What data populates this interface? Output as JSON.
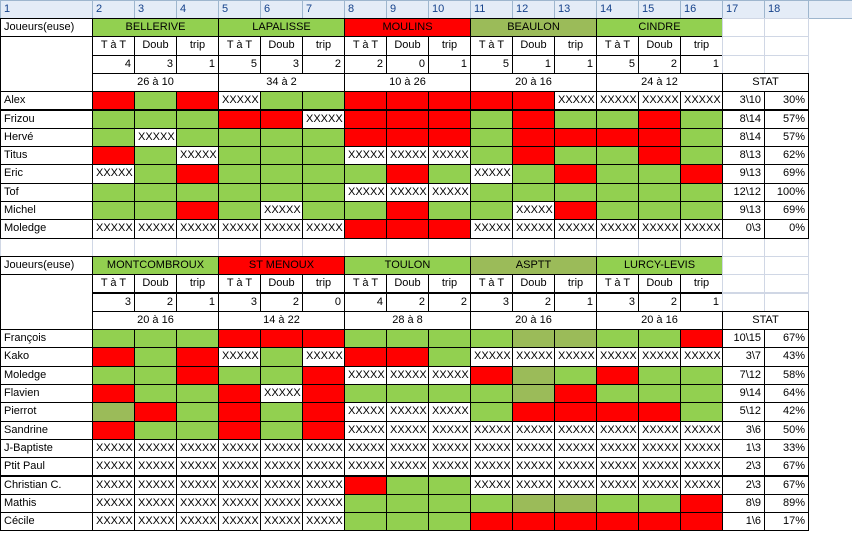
{
  "column_headers": [
    1,
    2,
    3,
    4,
    5,
    6,
    7,
    8,
    9,
    10,
    11,
    12,
    13,
    14,
    15,
    16,
    17,
    18
  ],
  "sections": [
    {
      "label": "Joueurs(euse)",
      "stat_label": "STAT",
      "teams": [
        {
          "name": "BELLERIVE",
          "sub": [
            "T à T",
            "Doub",
            "trip"
          ],
          "counts": [
            4,
            3,
            1
          ],
          "score": "26 à 10"
        },
        {
          "name": "LAPALISSE",
          "sub": [
            "T à T",
            "Doub",
            "trip"
          ],
          "counts": [
            5,
            3,
            2
          ],
          "score": "34 à 2"
        },
        {
          "name": "MOULINS",
          "sub": [
            "T à T",
            "Doub",
            "trip"
          ],
          "counts": [
            2,
            0,
            1
          ],
          "score": "10 à 26"
        },
        {
          "name": "BEAULON",
          "sub": [
            "T à T",
            "Doub",
            "trip"
          ],
          "counts": [
            5,
            1,
            1
          ],
          "score": "20 à 16"
        },
        {
          "name": "CINDRE",
          "sub": [
            "T à T",
            "Doub",
            "trip"
          ],
          "counts": [
            5,
            2,
            1
          ],
          "score": "24 à 12"
        }
      ],
      "players": [
        {
          "name": "Alex",
          "cells": [
            null,
            null,
            null,
            "XXXXX",
            null,
            null,
            null,
            null,
            null,
            null,
            null,
            "XXXXX",
            "XXXXX",
            "XXXXX",
            "XXXXX"
          ],
          "stat": "3\\10",
          "pct": "30%"
        },
        {
          "name": "Frizou",
          "cells": [
            null,
            null,
            null,
            null,
            null,
            "XXXXX",
            null,
            null,
            null,
            null,
            null,
            null,
            null,
            null,
            null
          ],
          "stat": "8\\14",
          "pct": "57%"
        },
        {
          "name": "Hervé",
          "cells": [
            null,
            "XXXXX",
            null,
            null,
            null,
            null,
            null,
            null,
            null,
            null,
            null,
            null,
            null,
            null,
            null
          ],
          "stat": "8\\14",
          "pct": "57%"
        },
        {
          "name": "Titus",
          "cells": [
            null,
            null,
            "XXXXX",
            null,
            null,
            null,
            "XXXXX",
            "XXXXX",
            "XXXXX",
            null,
            null,
            null,
            null,
            null,
            null
          ],
          "stat": "8\\13",
          "pct": "62%"
        },
        {
          "name": "Eric",
          "cells": [
            "XXXXX",
            null,
            null,
            null,
            null,
            null,
            null,
            null,
            null,
            "XXXXX",
            null,
            null,
            null,
            null,
            null
          ],
          "stat": "9\\13",
          "pct": "69%"
        },
        {
          "name": "Tof",
          "cells": [
            null,
            null,
            null,
            null,
            null,
            null,
            "XXXXX",
            "XXXXX",
            "XXXXX",
            null,
            null,
            null,
            null,
            null,
            null
          ],
          "stat": "12\\12",
          "pct": "100%"
        },
        {
          "name": "Michel",
          "cells": [
            null,
            null,
            null,
            null,
            "XXXXX",
            null,
            null,
            null,
            null,
            null,
            "XXXXX",
            null,
            null,
            null,
            null
          ],
          "stat": "9\\13",
          "pct": "69%"
        },
        {
          "name": "Moledge",
          "cells": [
            "XXXXX",
            "XXXXX",
            "XXXXX",
            "XXXXX",
            "XXXXX",
            "XXXXX",
            null,
            null,
            null,
            "XXXXX",
            "XXXXX",
            "XXXXX",
            "XXXXX",
            "XXXXX",
            "XXXXX"
          ],
          "stat": "0\\3",
          "pct": "0%"
        }
      ]
    },
    {
      "label": "Joueurs(euse)",
      "stat_label": "STAT",
      "teams": [
        {
          "name": "MONTCOMBROUX",
          "sub": [
            "T à T",
            "Doub",
            "trip"
          ],
          "counts": [
            3,
            2,
            1
          ],
          "score": "20 à 16"
        },
        {
          "name": "ST MENOUX",
          "sub": [
            "T à T",
            "Doub",
            "trip"
          ],
          "counts": [
            3,
            2,
            0
          ],
          "score": "14 à 22"
        },
        {
          "name": "TOULON",
          "sub": [
            "T à T",
            "Doub",
            "trip"
          ],
          "counts": [
            4,
            2,
            2
          ],
          "score": "28 à 8"
        },
        {
          "name": "ASPTT",
          "sub": [
            "T à T",
            "Doub",
            "trip"
          ],
          "counts": [
            3,
            2,
            1
          ],
          "score": "20 à 16"
        },
        {
          "name": "LURCY-LEVIS",
          "sub": [
            "T à T",
            "Doub",
            "trip"
          ],
          "counts": [
            3,
            2,
            1
          ],
          "score": "20 à 16"
        }
      ],
      "players": [
        {
          "name": "François",
          "cells": [
            null,
            null,
            null,
            null,
            null,
            null,
            null,
            null,
            null,
            null,
            null,
            null,
            null,
            null,
            null
          ],
          "stat": "10\\15",
          "pct": "67%"
        },
        {
          "name": "Kako",
          "cells": [
            null,
            null,
            null,
            "XXXXX",
            null,
            "XXXXX",
            null,
            null,
            null,
            "XXXXX",
            "XXXXX",
            "XXXXX",
            "XXXXX",
            "XXXXX",
            "XXXXX"
          ],
          "stat": "3\\7",
          "pct": "43%"
        },
        {
          "name": "Moledge",
          "cells": [
            null,
            null,
            null,
            null,
            null,
            null,
            "XXXXX",
            "XXXXX",
            "XXXXX",
            null,
            null,
            null,
            null,
            null,
            null
          ],
          "stat": "7\\12",
          "pct": "58%"
        },
        {
          "name": "Flavien",
          "cells": [
            null,
            null,
            null,
            null,
            "XXXXX",
            null,
            null,
            null,
            null,
            null,
            null,
            null,
            null,
            null,
            null
          ],
          "stat": "9\\14",
          "pct": "64%"
        },
        {
          "name": "Pierrot",
          "cells": [
            null,
            null,
            null,
            null,
            null,
            null,
            "XXXXX",
            "XXXXX",
            "XXXXX",
            null,
            null,
            null,
            null,
            null,
            null
          ],
          "stat": "5\\12",
          "pct": "42%"
        },
        {
          "name": "Sandrine",
          "cells": [
            null,
            null,
            null,
            null,
            null,
            null,
            "XXXXX",
            "XXXXX",
            "XXXXX",
            "XXXXX",
            "XXXXX",
            "XXXXX",
            "XXXXX",
            "XXXXX",
            "XXXXX"
          ],
          "stat": "3\\6",
          "pct": "50%"
        },
        {
          "name": "J-Baptiste",
          "cells": [
            "XXXXX",
            "XXXXX",
            "XXXXX",
            "XXXXX",
            "XXXXX",
            "XXXXX",
            "XXXXX",
            "XXXXX",
            "XXXXX",
            "XXXXX",
            "XXXXX",
            "XXXXX",
            "XXXXX",
            "XXXXX",
            "XXXXX"
          ],
          "stat": "1\\3",
          "pct": "33%"
        },
        {
          "name": "Ptit Paul",
          "cells": [
            "XXXXX",
            "XXXXX",
            "XXXXX",
            "XXXXX",
            "XXXXX",
            "XXXXX",
            "XXXXX",
            "XXXXX",
            "XXXXX",
            "XXXXX",
            "XXXXX",
            "XXXXX",
            "XXXXX",
            "XXXXX",
            "XXXXX"
          ],
          "stat": "2\\3",
          "pct": "67%"
        },
        {
          "name": "Christian C.",
          "cells": [
            "XXXXX",
            "XXXXX",
            "XXXXX",
            "XXXXX",
            "XXXXX",
            "XXXXX",
            null,
            null,
            null,
            "XXXXX",
            "XXXXX",
            "XXXXX",
            "XXXXX",
            "XXXXX",
            "XXXXX"
          ],
          "stat": "2\\3",
          "pct": "67%"
        },
        {
          "name": "Mathis",
          "cells": [
            "XXXXX",
            "XXXXX",
            "XXXXX",
            "XXXXX",
            "XXXXX",
            "XXXXX",
            null,
            null,
            null,
            null,
            null,
            null,
            null,
            null,
            null
          ],
          "stat": "8\\9",
          "pct": "89%"
        },
        {
          "name": "Cécile",
          "cells": [
            "XXXXX",
            "XXXXX",
            "XXXXX",
            "XXXXX",
            "XXXXX",
            "XXXXX",
            null,
            null,
            null,
            null,
            null,
            null,
            null,
            null,
            null
          ],
          "stat": "1\\6",
          "pct": "17%"
        }
      ]
    }
  ]
}
